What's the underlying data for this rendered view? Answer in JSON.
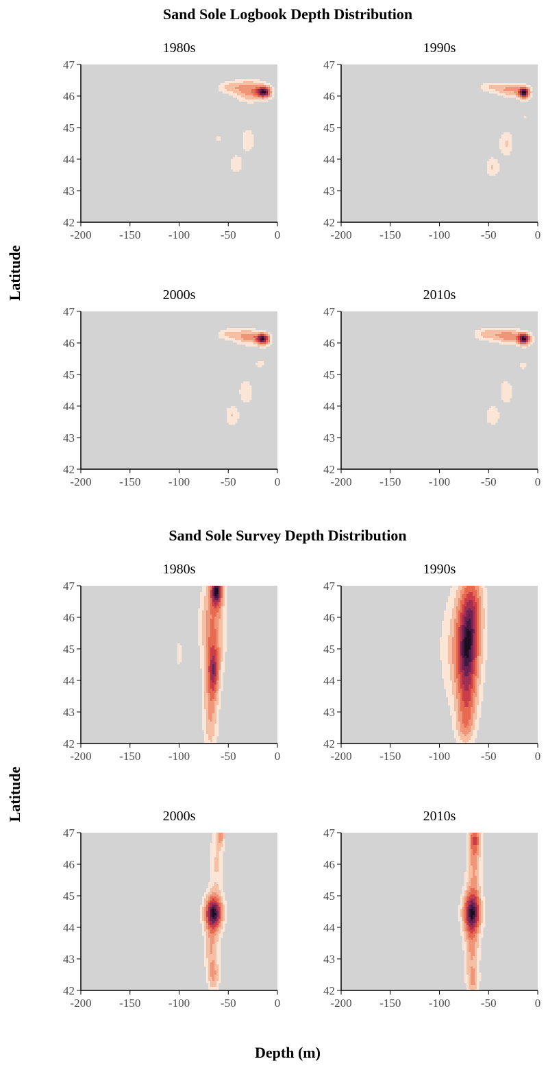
{
  "figure": {
    "ylabel": "Latitude",
    "xlabel": "Depth (m)"
  },
  "sections": [
    {
      "title": "Sand Sole Logbook Depth Distribution",
      "panels": [
        "1980s",
        "1990s",
        "2000s",
        "2010s"
      ]
    },
    {
      "title": "Sand Sole Survey Depth Distribution",
      "panels": [
        "1980s",
        "1990s",
        "2000s",
        "2010s"
      ]
    }
  ],
  "axes": {
    "x_ticks": [
      "-200",
      "-150",
      "-100",
      "-50",
      "0"
    ],
    "y_ticks": [
      "42",
      "43",
      "44",
      "45",
      "46",
      "47"
    ]
  },
  "colors": {
    "panel_background": "#d3d3d3",
    "density_levels": [
      "#fbe5d6",
      "#f6bfa3",
      "#f09577",
      "#e7694f",
      "#cc3d4a",
      "#9e2e54",
      "#6b2252",
      "#3d1840",
      "#1a0d1f"
    ]
  },
  "chart_data": [
    {
      "type": "heatmap",
      "title": "Sand Sole Logbook Depth Distribution",
      "xlabel": "Depth (m)",
      "ylabel": "Latitude",
      "xlim": [
        -200,
        0
      ],
      "ylim": [
        42,
        47
      ],
      "panels": [
        {
          "name": "1980s",
          "blobs": [
            {
              "x": -14,
              "y": 46.12,
              "sx": 5,
              "sy": 0.12,
              "w": 1.0
            },
            {
              "x": -28,
              "y": 46.18,
              "sx": 10,
              "sy": 0.22,
              "w": 0.45
            },
            {
              "x": -48,
              "y": 46.28,
              "sx": 9,
              "sy": 0.13,
              "w": 0.25
            },
            {
              "x": -30,
              "y": 44.6,
              "sx": 5,
              "sy": 0.3,
              "w": 0.17
            },
            {
              "x": -42,
              "y": 43.85,
              "sx": 6,
              "sy": 0.25,
              "w": 0.15
            },
            {
              "x": -60,
              "y": 44.65,
              "sx": 3,
              "sy": 0.1,
              "w": 0.12
            }
          ]
        },
        {
          "name": "1990s",
          "blobs": [
            {
              "x": -14,
              "y": 46.1,
              "sx": 4,
              "sy": 0.12,
              "w": 1.0
            },
            {
              "x": -28,
              "y": 46.2,
              "sx": 9,
              "sy": 0.14,
              "w": 0.35
            },
            {
              "x": -48,
              "y": 46.28,
              "sx": 9,
              "sy": 0.12,
              "w": 0.18
            },
            {
              "x": -32,
              "y": 44.5,
              "sx": 5,
              "sy": 0.28,
              "w": 0.2
            },
            {
              "x": -46,
              "y": 43.75,
              "sx": 5,
              "sy": 0.22,
              "w": 0.2
            },
            {
              "x": -12,
              "y": 45.35,
              "sx": 2,
              "sy": 0.1,
              "w": 0.1
            }
          ]
        },
        {
          "name": "2000s",
          "blobs": [
            {
              "x": -15,
              "y": 46.12,
              "sx": 4.5,
              "sy": 0.12,
              "w": 1.0
            },
            {
              "x": -30,
              "y": 46.2,
              "sx": 9,
              "sy": 0.16,
              "w": 0.4
            },
            {
              "x": -50,
              "y": 46.28,
              "sx": 8,
              "sy": 0.12,
              "w": 0.22
            },
            {
              "x": -32,
              "y": 44.45,
              "sx": 5,
              "sy": 0.28,
              "w": 0.18
            },
            {
              "x": -46,
              "y": 43.7,
              "sx": 5,
              "sy": 0.22,
              "w": 0.2
            },
            {
              "x": -18,
              "y": 45.35,
              "sx": 4,
              "sy": 0.12,
              "w": 0.13
            }
          ]
        },
        {
          "name": "2010s",
          "blobs": [
            {
              "x": -14,
              "y": 46.12,
              "sx": 4.5,
              "sy": 0.12,
              "w": 1.0
            },
            {
              "x": -30,
              "y": 46.22,
              "sx": 10,
              "sy": 0.15,
              "w": 0.42
            },
            {
              "x": -52,
              "y": 46.28,
              "sx": 9,
              "sy": 0.13,
              "w": 0.25
            },
            {
              "x": -32,
              "y": 44.45,
              "sx": 5,
              "sy": 0.28,
              "w": 0.17
            },
            {
              "x": -46,
              "y": 43.7,
              "sx": 5,
              "sy": 0.22,
              "w": 0.19
            },
            {
              "x": -15,
              "y": 45.3,
              "sx": 4,
              "sy": 0.12,
              "w": 0.12
            }
          ]
        }
      ]
    },
    {
      "type": "heatmap",
      "title": "Sand Sole Survey Depth Distribution",
      "xlabel": "Depth (m)",
      "ylabel": "Latitude",
      "xlim": [
        -200,
        0
      ],
      "ylim": [
        42,
        47
      ],
      "panels": [
        {
          "name": "1980s",
          "blobs": [
            {
              "x": -62,
              "y": 46.85,
              "sx": 4,
              "sy": 0.35,
              "w": 0.75
            },
            {
              "x": -65,
              "y": 44.3,
              "sx": 4,
              "sy": 0.55,
              "w": 0.5
            },
            {
              "x": -66,
              "y": 45.7,
              "sx": 8,
              "sy": 1.0,
              "w": 0.38
            },
            {
              "x": -68,
              "y": 43.0,
              "sx": 5,
              "sy": 0.9,
              "w": 0.28
            },
            {
              "x": -100,
              "y": 44.85,
              "sx": 2.5,
              "sy": 0.35,
              "w": 0.12
            }
          ]
        },
        {
          "name": "1990s",
          "blobs": [
            {
              "x": -72,
              "y": 44.9,
              "sx": 8,
              "sy": 0.8,
              "w": 1.0
            },
            {
              "x": -68,
              "y": 46.3,
              "sx": 8,
              "sy": 0.8,
              "w": 0.8
            },
            {
              "x": -72,
              "y": 43.4,
              "sx": 7,
              "sy": 0.7,
              "w": 0.55
            },
            {
              "x": -80,
              "y": 45.0,
              "sx": 15,
              "sy": 1.4,
              "w": 0.25
            },
            {
              "x": -74,
              "y": 42.5,
              "sx": 6,
              "sy": 0.45,
              "w": 0.3
            }
          ]
        },
        {
          "name": "2000s",
          "blobs": [
            {
              "x": -65,
              "y": 44.45,
              "sx": 6,
              "sy": 0.38,
              "w": 1.0
            },
            {
              "x": -67,
              "y": 43.35,
              "sx": 5,
              "sy": 0.5,
              "w": 0.3
            },
            {
              "x": -65,
              "y": 42.45,
              "sx": 4,
              "sy": 0.35,
              "w": 0.3
            },
            {
              "x": -62,
              "y": 46.0,
              "sx": 5,
              "sy": 0.8,
              "w": 0.2
            },
            {
              "x": -58,
              "y": 46.9,
              "sx": 3,
              "sy": 0.25,
              "w": 0.3
            }
          ]
        },
        {
          "name": "2010s",
          "blobs": [
            {
              "x": -67,
              "y": 44.45,
              "sx": 6,
              "sy": 0.45,
              "w": 1.0
            },
            {
              "x": -67,
              "y": 43.25,
              "sx": 5,
              "sy": 0.6,
              "w": 0.35
            },
            {
              "x": -65,
              "y": 45.9,
              "sx": 5,
              "sy": 0.9,
              "w": 0.35
            },
            {
              "x": -64,
              "y": 46.8,
              "sx": 4,
              "sy": 0.35,
              "w": 0.45
            },
            {
              "x": -66,
              "y": 42.3,
              "sx": 4,
              "sy": 0.3,
              "w": 0.3
            }
          ]
        }
      ]
    }
  ]
}
